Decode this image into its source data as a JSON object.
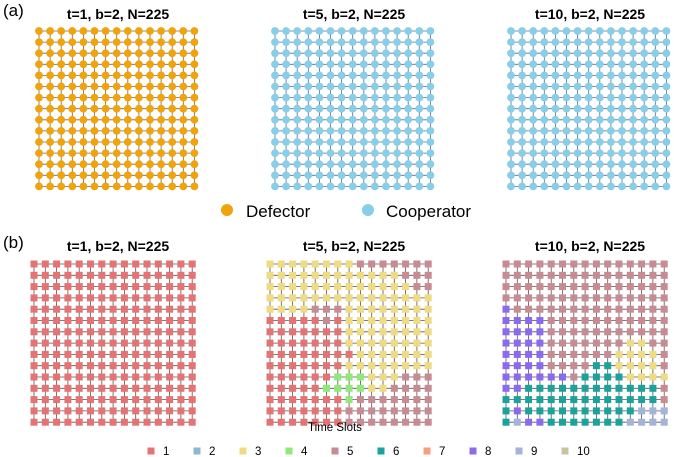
{
  "figure_a": {
    "label": "(a)",
    "panels": [
      {
        "title": "t=1, b=2, N=225",
        "state": "defector"
      },
      {
        "title": "t=5, b=2, N=225",
        "state": "cooperator"
      },
      {
        "title": "t=10, b=2, N=225",
        "state": "cooperator"
      }
    ],
    "legend": [
      {
        "label": "Defector",
        "color": "#F0A30A"
      },
      {
        "label": "Cooperator",
        "color": "#87CEEB"
      }
    ]
  },
  "figure_b": {
    "label": "(b)",
    "panels": [
      {
        "title": "t=1, b=2, N=225",
        "rows": [
          "111111111111111",
          "111111111111111",
          "111111111111111",
          "111111111111111",
          "111111111111111",
          "111111111111111",
          "111111111111111",
          "111111111111111",
          "111111111111111",
          "111111111111111",
          "111111111111111",
          "111111111111111",
          "111111111111111",
          "111111111111111",
          "111111111111111"
        ]
      },
      {
        "title": "t=5, b=2, N=225",
        "rows": [
          "333333335555555",
          "333333333333555",
          "333333333333355",
          "333333333333333",
          "333355533333333",
          "111115133333333",
          "111111133333333",
          "111111133333333",
          "111111113333333",
          "111111133333333",
          "111111444333555",
          "111114444335555",
          "111111145555555",
          "111111155555555",
          "111111155555555"
        ]
      },
      {
        "title": "t=10, b=2, N=225",
        "rows": [
          "555555555555555",
          "555555555555555",
          "555555555555555",
          "555555555555555",
          "855555555555555",
          "888855555555555",
          "888855555555555",
          "888855555553355",
          "888855555533335",
          "888855556633335",
          "888888566663333",
          "886666666666665",
          "666666666666665",
          "686666666666999",
          "698866666669999"
        ]
      }
    ],
    "legend_title": "Time Slots",
    "legend": [
      {
        "label": "1",
        "color": "#E57373"
      },
      {
        "label": "2",
        "color": "#8FB7CF"
      },
      {
        "label": "3",
        "color": "#EFDB82"
      },
      {
        "label": "4",
        "color": "#90E878"
      },
      {
        "label": "5",
        "color": "#C88A93"
      },
      {
        "label": "6",
        "color": "#1AA39B"
      },
      {
        "label": "7",
        "color": "#F5A07A"
      },
      {
        "label": "8",
        "color": "#8A6BF0"
      },
      {
        "label": "9",
        "color": "#A3B3D9"
      },
      {
        "label": "10",
        "color": "#C8C3A0"
      }
    ]
  },
  "colors": {
    "edge_a": "#666666",
    "edge_b": "#555555"
  }
}
